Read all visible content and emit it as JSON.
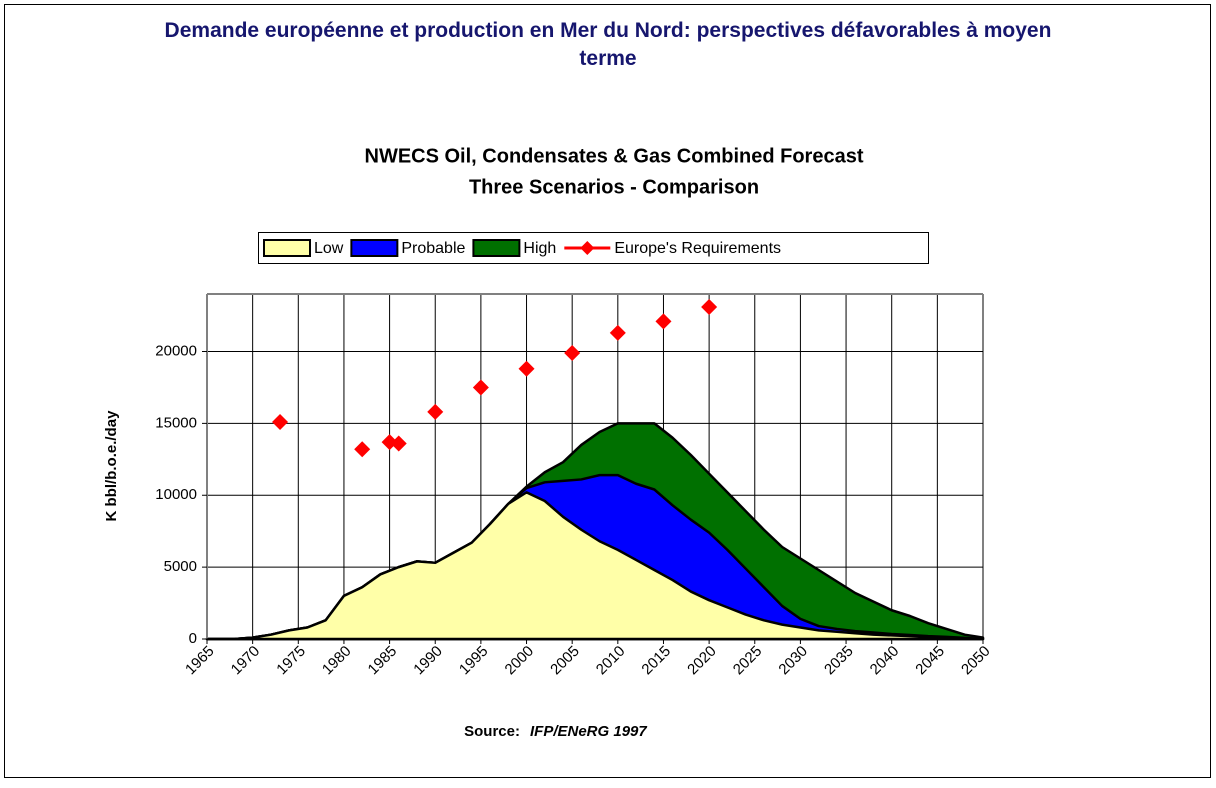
{
  "page_title": "Demande européenne et production en Mer du Nord: perspectives défavorables à moyen terme",
  "chart_data": {
    "type": "area",
    "title": "NWECS Oil, Condensates & Gas Combined Forecast",
    "subtitle": "Three Scenarios - Comparison",
    "y_label": "K bbl/b.o.e./day",
    "source_label": "Source:",
    "source_text": "IFP/ENeRG 1997",
    "xlim": [
      1965,
      2050
    ],
    "xticks": [
      1965,
      1970,
      1975,
      1980,
      1985,
      1990,
      1995,
      2000,
      2005,
      2010,
      2015,
      2020,
      2025,
      2030,
      2035,
      2040,
      2045,
      2050
    ],
    "ylim": [
      0,
      24000
    ],
    "yticks": [
      0,
      5000,
      10000,
      15000,
      20000
    ],
    "grid": true,
    "x": [
      1965,
      1968,
      1970,
      1972,
      1974,
      1976,
      1978,
      1980,
      1982,
      1984,
      1986,
      1988,
      1990,
      1992,
      1994,
      1996,
      1998,
      2000,
      2002,
      2004,
      2006,
      2008,
      2010,
      2012,
      2014,
      2016,
      2018,
      2020,
      2022,
      2024,
      2026,
      2028,
      2030,
      2032,
      2034,
      2036,
      2038,
      2040,
      2042,
      2044,
      2046,
      2048,
      2050
    ],
    "series": [
      {
        "name": "High",
        "color": "#007000",
        "values": [
          0,
          0,
          100,
          300,
          600,
          800,
          1300,
          3000,
          3600,
          4500,
          5000,
          5400,
          5300,
          6000,
          6700,
          8000,
          9400,
          10600,
          11600,
          12300,
          13500,
          14400,
          15000,
          15000,
          15000,
          14000,
          12800,
          11500,
          10200,
          8900,
          7600,
          6400,
          5600,
          4800,
          4000,
          3200,
          2600,
          2000,
          1600,
          1100,
          700,
          300,
          100
        ]
      },
      {
        "name": "Probable",
        "color": "#0000ff",
        "values": [
          0,
          0,
          100,
          300,
          600,
          800,
          1300,
          3000,
          3600,
          4500,
          5000,
          5400,
          5300,
          6000,
          6700,
          8000,
          9400,
          10500,
          10900,
          11000,
          11100,
          11400,
          11400,
          10800,
          10400,
          9300,
          8300,
          7400,
          6200,
          4900,
          3600,
          2300,
          1400,
          900,
          700,
          550,
          450,
          350,
          280,
          200,
          150,
          80,
          0
        ]
      },
      {
        "name": "Low",
        "color": "#ffffa8",
        "values": [
          0,
          0,
          100,
          300,
          600,
          800,
          1300,
          3000,
          3600,
          4500,
          5000,
          5400,
          5300,
          6000,
          6700,
          8000,
          9400,
          10200,
          9600,
          8500,
          7600,
          6800,
          6200,
          5500,
          4800,
          4100,
          3300,
          2700,
          2200,
          1700,
          1300,
          1000,
          800,
          600,
          500,
          400,
          300,
          250,
          200,
          150,
          100,
          50,
          0
        ]
      },
      {
        "name": "Europe's Requirements",
        "color": "#ff0000",
        "type": "scatter",
        "x": [
          1973,
          1982,
          1985,
          1986,
          1990,
          1995,
          2000,
          2005,
          2010,
          2015,
          2020
        ],
        "values": [
          15100,
          13200,
          13700,
          13600,
          15800,
          17500,
          18800,
          19900,
          21300,
          22100,
          23100
        ]
      }
    ],
    "legend_order": [
      2,
      1,
      0,
      3
    ]
  }
}
